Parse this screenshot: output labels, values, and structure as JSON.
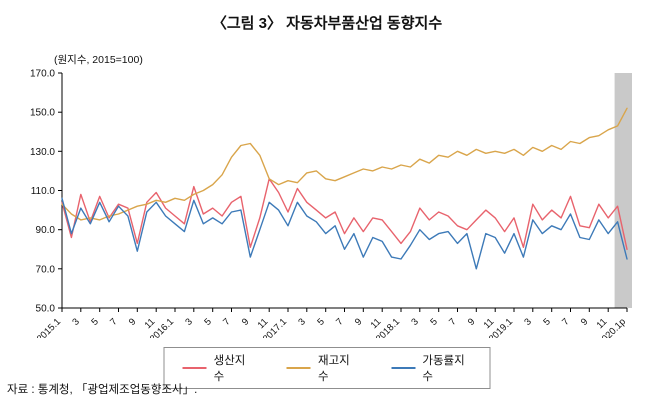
{
  "figure": {
    "title": "〈그림 3〉 자동차부품산업 동향지수",
    "unit_label": "(원지수, 2015=100)",
    "source": "자료 : 통계청, 「광업제조업동향조사」."
  },
  "chart_data": {
    "type": "line",
    "title": "〈그림 3〉 자동차부품산업 동향지수",
    "ylabel": "(원지수, 2015=100)",
    "ylim": [
      50,
      170
    ],
    "y_ticks": [
      170,
      150,
      130,
      110,
      90,
      70,
      50
    ],
    "grid": false,
    "legend_position": "bottom",
    "x_labels": [
      "2015.1",
      "",
      "3",
      "",
      "5",
      "",
      "7",
      "",
      "9",
      "",
      "11",
      "",
      "2016.1",
      "",
      "3",
      "",
      "5",
      "",
      "7",
      "",
      "9",
      "",
      "11",
      "",
      "2017.1",
      "",
      "3",
      "",
      "5",
      "",
      "7",
      "",
      "9",
      "",
      "11",
      "",
      "2018.1",
      "",
      "3",
      "",
      "5",
      "",
      "7",
      "",
      "9",
      "",
      "11",
      "",
      "2019.1",
      "",
      "3",
      "",
      "5",
      "",
      "7",
      "",
      "9",
      "",
      "11",
      "",
      "2020.1p"
    ],
    "series": [
      {
        "name": "생산지수",
        "color": "#e8636d",
        "values": [
          104,
          86,
          108,
          94,
          107,
          96,
          103,
          101,
          83,
          104,
          109,
          101,
          97,
          93,
          112,
          98,
          101,
          97,
          104,
          107,
          81,
          96,
          116,
          109,
          99,
          111,
          104,
          100,
          96,
          99,
          88,
          96,
          89,
          96,
          95,
          89,
          83,
          89,
          101,
          95,
          99,
          97,
          92,
          90,
          95,
          100,
          96,
          89,
          96,
          81,
          103,
          95,
          100,
          96,
          107,
          92,
          91,
          103,
          96,
          102,
          80
        ]
      },
      {
        "name": "재고지수",
        "color": "#d9a54b",
        "values": [
          103,
          98,
          95,
          96,
          95,
          97,
          98,
          100,
          102,
          103,
          105,
          104,
          106,
          105,
          108,
          110,
          113,
          118,
          127,
          133,
          134,
          128,
          116,
          113,
          115,
          114,
          119,
          120,
          116,
          115,
          117,
          119,
          121,
          120,
          122,
          121,
          123,
          122,
          126,
          124,
          128,
          127,
          130,
          128,
          131,
          129,
          130,
          129,
          131,
          128,
          132,
          130,
          133,
          131,
          135,
          134,
          137,
          138,
          141,
          143,
          152
        ]
      },
      {
        "name": "가동률지수",
        "color": "#3d7ab8",
        "values": [
          106,
          88,
          101,
          93,
          104,
          94,
          102,
          97,
          79,
          99,
          104,
          97,
          93,
          89,
          105,
          93,
          96,
          93,
          99,
          100,
          76,
          90,
          104,
          100,
          92,
          104,
          97,
          94,
          88,
          92,
          80,
          88,
          76,
          86,
          84,
          76,
          75,
          82,
          90,
          85,
          88,
          89,
          83,
          88,
          70,
          88,
          86,
          78,
          88,
          76,
          95,
          88,
          92,
          90,
          98,
          86,
          85,
          95,
          88,
          94,
          75
        ]
      }
    ],
    "highlight_band": {
      "label": "2020.1p",
      "from_index": 59,
      "to_index": 60,
      "color": "#c9c9c9"
    }
  }
}
